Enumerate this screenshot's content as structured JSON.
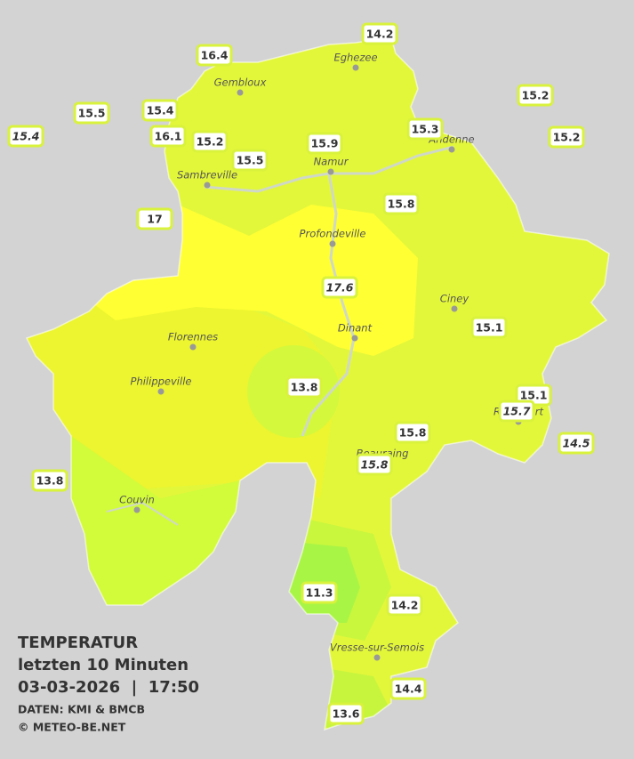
{
  "legend": {
    "title": "TEMPERATUR",
    "subtitle": "letzten 10 Minuten",
    "datetime": "03-03-2026  |  17:50",
    "source": "DATEN: KMI & BMCB",
    "copyright": "© METEO-BE.NET"
  },
  "towns": [
    "Eghezee",
    "Gembloux",
    "Andenne",
    "Namur",
    "Sambreville",
    "Profondeville",
    "Ciney",
    "Dinant",
    "Florennes",
    "Philippeville",
    "Beauraing",
    "Rochefort",
    "Couvin",
    "Vresse-sur-Semois"
  ],
  "stations": [
    {
      "value": 14.2
    },
    {
      "value": 16.4
    },
    {
      "value": 15.2
    },
    {
      "value": 15.5
    },
    {
      "value": 15.4
    },
    {
      "value": 15.4,
      "italic": true
    },
    {
      "value": 16.1
    },
    {
      "value": 15.2
    },
    {
      "value": 15.3
    },
    {
      "value": 15.2
    },
    {
      "value": 15.9
    },
    {
      "value": 15.5
    },
    {
      "value": 15.8
    },
    {
      "value": 17.0
    },
    {
      "value": 17.6,
      "italic": true
    },
    {
      "value": 15.1
    },
    {
      "value": 13.8
    },
    {
      "value": 15.1
    },
    {
      "value": 15.7,
      "italic": true
    },
    {
      "value": 14.5,
      "italic": true
    },
    {
      "value": 15.8
    },
    {
      "value": 15.8,
      "italic": true
    },
    {
      "value": 13.8
    },
    {
      "value": 11.3
    },
    {
      "value": 14.2
    },
    {
      "value": 14.4
    },
    {
      "value": 13.6
    }
  ]
}
